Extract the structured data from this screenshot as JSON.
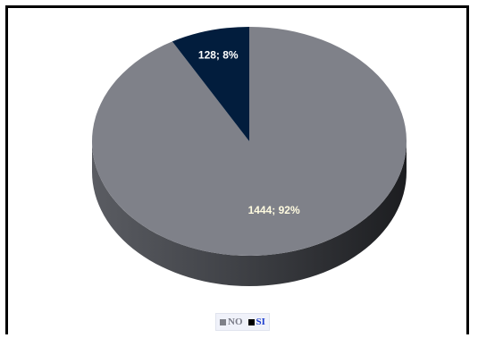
{
  "chart_data": {
    "type": "pie",
    "style": "3d",
    "title": "",
    "categories": [
      "NO",
      "SI"
    ],
    "values": [
      1444,
      128
    ],
    "percentages": [
      92,
      8
    ],
    "data_labels": [
      "1444; 92%",
      "128; 8%"
    ],
    "colors": [
      "#7f8189",
      "#021d3d"
    ],
    "label_colors": [
      "#fffbe0",
      "#ffffff"
    ],
    "legend": {
      "position": "bottom",
      "entries": [
        {
          "label": "NO",
          "color": "#7f8189",
          "text_color": "#7a7c88"
        },
        {
          "label": "SI",
          "color": "#000000",
          "text_color": "#1f3fcf"
        }
      ]
    }
  }
}
